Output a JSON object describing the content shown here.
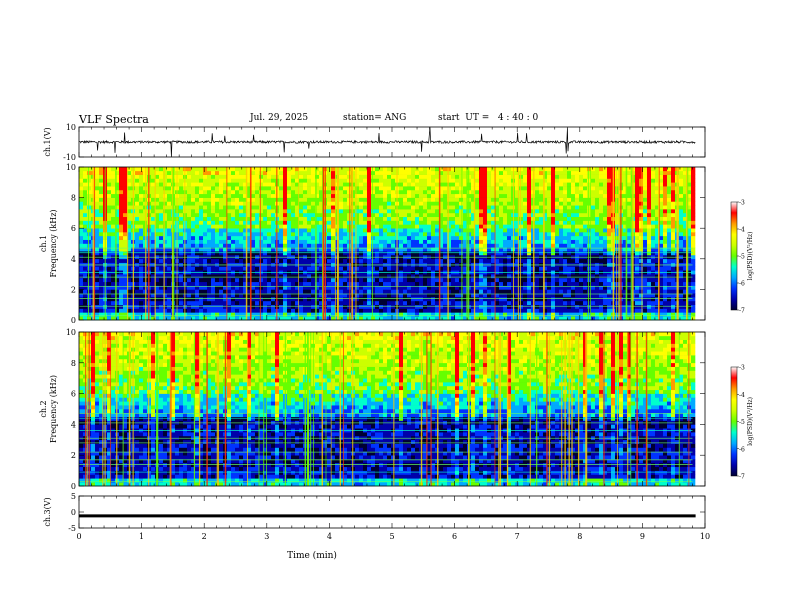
{
  "header": {
    "title": "VLF Spectra",
    "date": "Jul. 29, 2025",
    "station": "station= ANG",
    "start": "start  UT =   4 : 40 : 0"
  },
  "chart_data": [
    {
      "type": "line",
      "id": "ch1-waveform",
      "ylabel": "ch.1(V)",
      "ylim": [
        -10,
        10
      ],
      "yticks": [
        "10",
        "-10"
      ],
      "xlim": [
        0,
        10
      ],
      "baseline": 0,
      "line_color": "#000000"
    },
    {
      "type": "heatmap",
      "id": "ch1-spectrogram",
      "ylabel_line1": "ch.1",
      "ylabel_line2": "Frequency  (kHz)",
      "ylim": [
        0,
        10
      ],
      "yticks": [
        "0",
        "2",
        "4",
        "6",
        "8",
        "10"
      ],
      "xlim": [
        0,
        10
      ],
      "data_end_min": 9.8,
      "colorbar": {
        "label": "log(PSD)(V²/Hz)",
        "range": [
          -7,
          -3
        ],
        "ticks": [
          "-3",
          "-4",
          "-5",
          "-6",
          "-7"
        ]
      }
    },
    {
      "type": "heatmap",
      "id": "ch2-spectrogram",
      "ylabel_line1": "ch.2",
      "ylabel_line2": "Frequency  (kHz)",
      "ylim": [
        0,
        10
      ],
      "yticks": [
        "0",
        "2",
        "4",
        "6",
        "8",
        "10"
      ],
      "xlim": [
        0,
        10
      ],
      "data_end_min": 9.8,
      "colorbar": {
        "label": "log(PSD)(V²/Hz)",
        "range": [
          -7,
          -3
        ],
        "ticks": [
          "-3",
          "-4",
          "-5",
          "-6",
          "-7"
        ]
      }
    },
    {
      "type": "line",
      "id": "ch3-trace",
      "ylabel": "ch.3(V)",
      "ylim": [
        -5,
        5
      ],
      "yticks": [
        "5",
        "0",
        "-5"
      ],
      "xlim": [
        0,
        10
      ],
      "constant_value": -1.2,
      "line_color": "#000000"
    }
  ],
  "x_axis": {
    "label": "Time  (min)",
    "ticks": [
      "0",
      "1",
      "2",
      "3",
      "4",
      "5",
      "6",
      "7",
      "8",
      "9",
      "10"
    ]
  },
  "colors": {
    "background": "#ffffff",
    "axis": "#000000",
    "colormap": [
      "#000033",
      "#0000aa",
      "#0033ff",
      "#00aaff",
      "#00ffcc",
      "#66ff00",
      "#ccff00",
      "#ffff00",
      "#ff9900",
      "#ff0000",
      "#ffffff"
    ]
  }
}
